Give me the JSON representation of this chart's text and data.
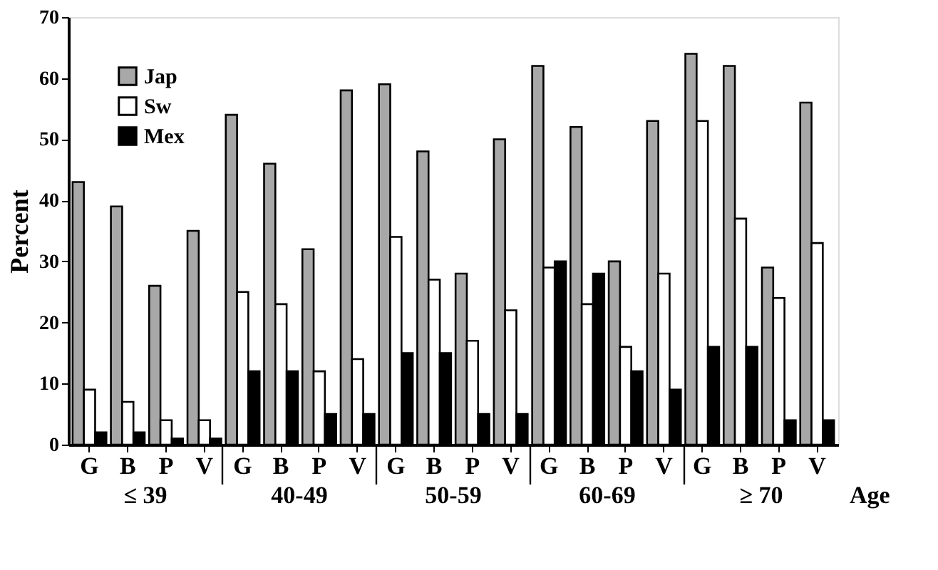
{
  "chart_data": {
    "type": "bar",
    "ylabel": "Percent",
    "xlabel": "Age",
    "categories": [
      "G",
      "B",
      "P",
      "V",
      "G",
      "B",
      "P",
      "V",
      "G",
      "B",
      "P",
      "V",
      "G",
      "B",
      "P",
      "V",
      "G",
      "B",
      "P",
      "V"
    ],
    "series": [
      {
        "name": "Jap",
        "color": "#a8a8a8",
        "values": [
          43,
          39,
          26,
          35,
          54,
          46,
          32,
          58,
          59,
          48,
          28,
          50,
          62,
          52,
          30,
          53,
          64,
          62,
          29,
          56
        ]
      },
      {
        "name": "Sw",
        "color": "#ffffff",
        "values": [
          9,
          7,
          4,
          4,
          25,
          23,
          12,
          14,
          34,
          27,
          17,
          22,
          29,
          23,
          16,
          28,
          53,
          37,
          24,
          33
        ]
      },
      {
        "name": "Mex",
        "color": "#000000",
        "values": [
          2,
          2,
          1,
          1,
          12,
          12,
          5,
          5,
          15,
          15,
          5,
          5,
          30,
          28,
          12,
          9,
          16,
          16,
          4,
          4
        ]
      }
    ],
    "ylim": [
      0,
      70
    ],
    "yticks": [
      0,
      10,
      20,
      30,
      40,
      50,
      60,
      70
    ],
    "grid": false,
    "legend": "top left",
    "annotations": [
      "≤ 39",
      "40-49",
      "50-59",
      "60-69",
      "≥ 70"
    ]
  }
}
